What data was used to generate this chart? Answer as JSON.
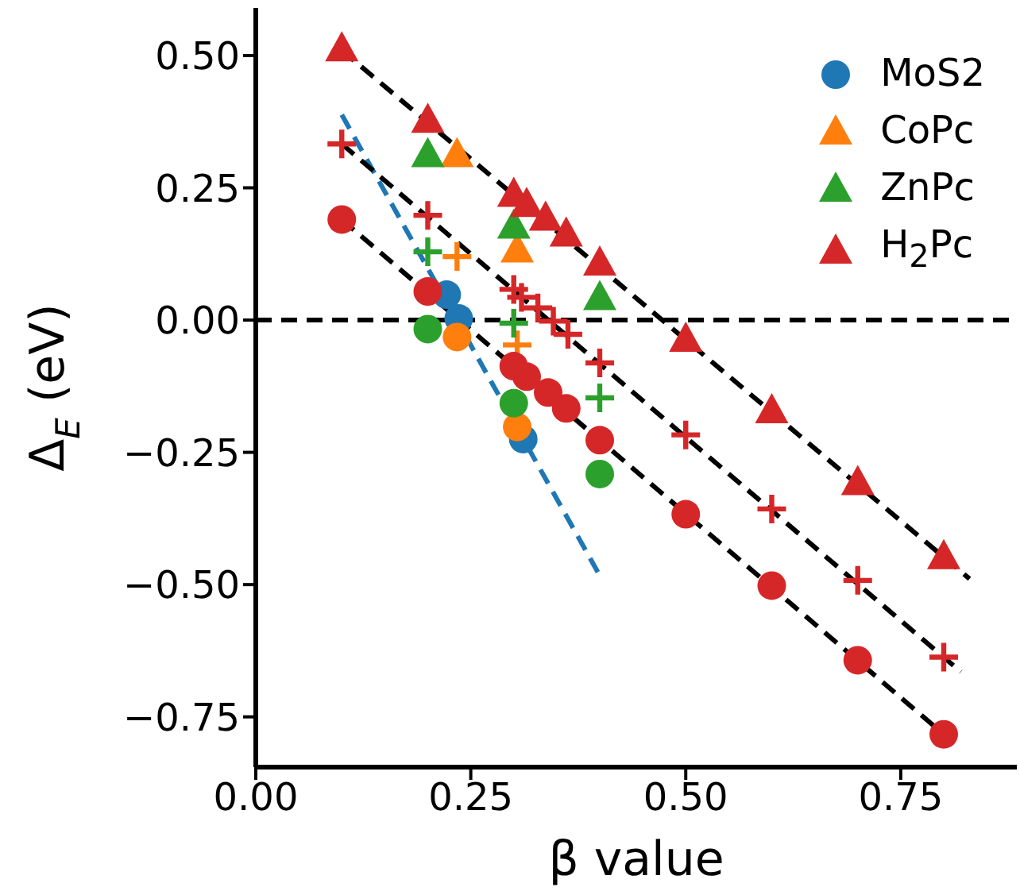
{
  "chart_data": {
    "type": "scatter",
    "xlabel": "β value",
    "ylabel": "Δ$_{E}$ (eV)",
    "xlim": [
      0,
      0.885
    ],
    "ylim": [
      -0.845,
      0.59
    ],
    "xticks": [
      {
        "value": 0,
        "label": "0.00"
      },
      {
        "value": 0.25,
        "label": "0.25"
      },
      {
        "value": 0.5,
        "label": "0.50"
      },
      {
        "value": 0.75,
        "label": "0.75"
      }
    ],
    "yticks": [
      {
        "value": -0.75,
        "label": "−0.75"
      },
      {
        "value": -0.5,
        "label": "−0.50"
      },
      {
        "value": -0.25,
        "label": "−0.25"
      },
      {
        "value": 0,
        "label": "0.00"
      },
      {
        "value": 0.25,
        "label": "0.25"
      },
      {
        "value": 0.5,
        "label": "0.50"
      }
    ],
    "legend": "top right",
    "ref_lines": [
      {
        "axis": "y",
        "value": 0,
        "color": "#000000",
        "line_style": "dashed"
      }
    ],
    "series": [
      {
        "name": "MoS2",
        "color": "#1f77b4",
        "marker": "circle",
        "x": [
          0.222,
          0.236,
          0.311
        ],
        "values": [
          0.048,
          0.003,
          -0.225
        ]
      },
      {
        "name": "CoPc",
        "color": "#ff7f0e",
        "marker": "triangle",
        "x": [
          0.234,
          0.304
        ],
        "values": [
          0.313,
          0.133
        ]
      },
      {
        "name": "ZnPc",
        "color": "#2ca02c",
        "marker": "triangle",
        "x": [
          0.2,
          0.3,
          0.4
        ],
        "values": [
          0.313,
          0.178,
          0.043
        ]
      },
      {
        "name": "H$_{2}$Pc",
        "color": "#d62728",
        "marker": "triangle",
        "x": [
          0.1,
          0.2,
          0.3,
          0.315,
          0.337,
          0.361,
          0.4,
          0.5,
          0.6,
          0.7,
          0.8
        ],
        "values": [
          0.513,
          0.378,
          0.238,
          0.219,
          0.193,
          0.163,
          0.108,
          -0.036,
          -0.171,
          -0.307,
          -0.447
        ]
      },
      {
        "color": "#ff7f0e",
        "marker": "cross",
        "x": [
          0.234,
          0.304
        ],
        "values": [
          0.12,
          -0.047
        ]
      },
      {
        "color": "#ff7f0e",
        "marker": "circle",
        "x": [
          0.234,
          0.304
        ],
        "values": [
          -0.032,
          -0.202
        ]
      },
      {
        "color": "#2ca02c",
        "marker": "cross",
        "x": [
          0.2,
          0.3,
          0.4
        ],
        "values": [
          0.129,
          -0.006,
          -0.147
        ]
      },
      {
        "color": "#2ca02c",
        "marker": "circle",
        "x": [
          0.2,
          0.3,
          0.4
        ],
        "values": [
          -0.017,
          -0.157,
          -0.291
        ]
      },
      {
        "color": "#d62728",
        "marker": "cross",
        "x": [
          0.1,
          0.2,
          0.3,
          0.309,
          0.328,
          0.346,
          0.363,
          0.4,
          0.5,
          0.6,
          0.7,
          0.8
        ],
        "values": [
          0.333,
          0.198,
          0.058,
          0.043,
          0.023,
          -0.002,
          -0.027,
          -0.081,
          -0.217,
          -0.357,
          -0.492,
          -0.637
        ]
      },
      {
        "color": "#d62728",
        "marker": "circle",
        "x": [
          0.1,
          0.2,
          0.3,
          0.315,
          0.34,
          0.361,
          0.4,
          0.5,
          0.6,
          0.7,
          0.8
        ],
        "values": [
          0.19,
          0.054,
          -0.087,
          -0.107,
          -0.137,
          -0.167,
          -0.227,
          -0.367,
          -0.502,
          -0.643,
          -0.783
        ]
      },
      {
        "type": "line",
        "color": "#1f77b4",
        "line_style": "dashed",
        "marker": "none",
        "x": [
          0.1,
          0.4
        ],
        "values": [
          0.388,
          -0.483
        ]
      },
      {
        "type": "line",
        "color": "#000000",
        "line_style": "dashed",
        "marker": "none",
        "x": [
          0.1,
          0.83
        ],
        "values": [
          0.51,
          -0.489
        ]
      },
      {
        "type": "line",
        "color": "#000000",
        "line_style": "dashed",
        "marker": "none",
        "x": [
          0.1,
          0.82
        ],
        "values": [
          0.333,
          -0.665
        ]
      },
      {
        "type": "line",
        "color": "#000000",
        "line_style": "dashed",
        "marker": "none",
        "x": [
          0.1,
          0.8
        ],
        "values": [
          0.19,
          -0.783
        ]
      }
    ]
  }
}
